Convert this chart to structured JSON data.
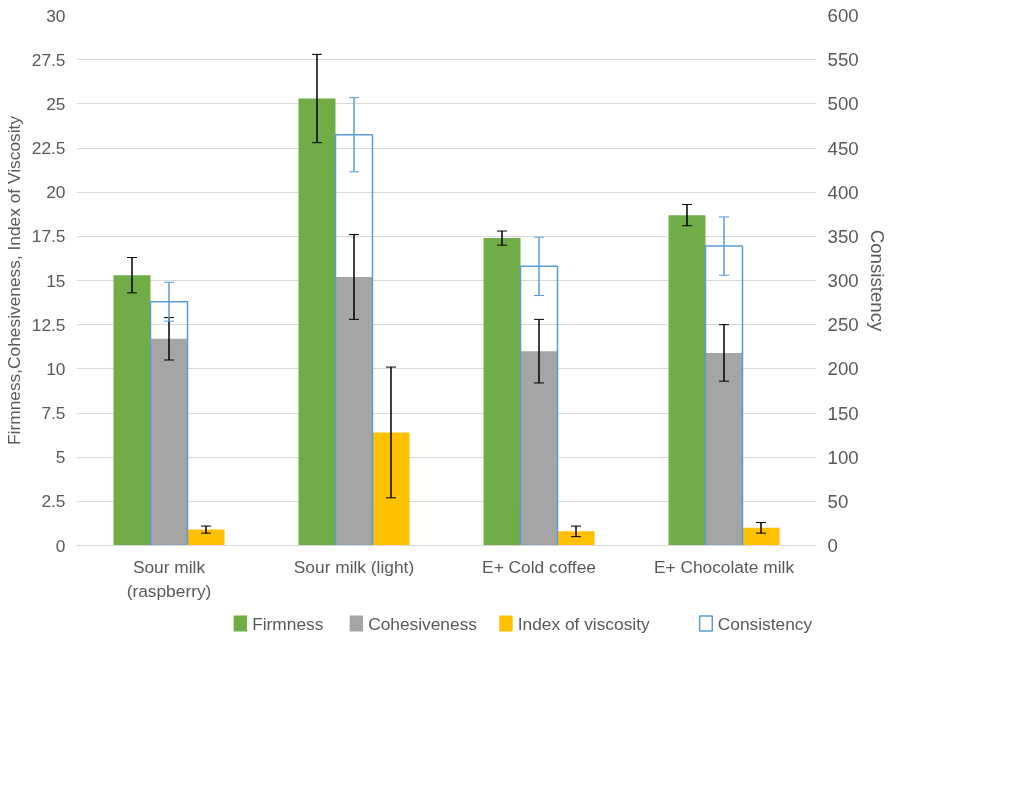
{
  "chart_data": {
    "type": "bar",
    "ylabel": "Firmness,Cohesiveness, Index of Viscosity",
    "y2label": "Consistency",
    "categories": [
      "Sour milk (raspberry)",
      "Sour milk (light)",
      "E+ Cold coffee",
      "E+ Chocolate milk"
    ],
    "series": [
      {
        "name": "Firmness",
        "color": "#70ad47",
        "values": [
          15.3,
          25.3,
          17.4,
          18.7
        ],
        "errors": [
          1.0,
          2.5,
          0.4,
          0.6
        ]
      },
      {
        "name": "Cohesiveness",
        "color": "#a5a5a5",
        "values": [
          11.7,
          15.2,
          11.0,
          10.9
        ],
        "errors": [
          1.2,
          2.4,
          1.8,
          1.6
        ]
      },
      {
        "name": "Index of viscosity",
        "color": "#ffc000",
        "values": [
          0.9,
          6.4,
          0.8,
          1.0
        ],
        "errors": [
          0.2,
          3.7,
          0.3,
          0.3
        ]
      },
      {
        "name": "Consistency",
        "color": "#5b9bd5",
        "values": [
          276,
          465,
          316,
          339
        ],
        "errors": [
          22,
          42,
          33,
          33
        ],
        "axis": "y2"
      }
    ],
    "ylim": [
      0,
      30
    ],
    "yticks": [
      0,
      2.5,
      5,
      7.5,
      10,
      12.5,
      15,
      17.5,
      20,
      22.5,
      25,
      27.5,
      30
    ],
    "y2lim": [
      0,
      600
    ],
    "y2ticks": [
      0,
      50,
      100,
      150,
      200,
      250,
      300,
      350,
      400,
      450,
      500,
      550,
      600
    ],
    "grid": "y",
    "legend": "bottom"
  }
}
